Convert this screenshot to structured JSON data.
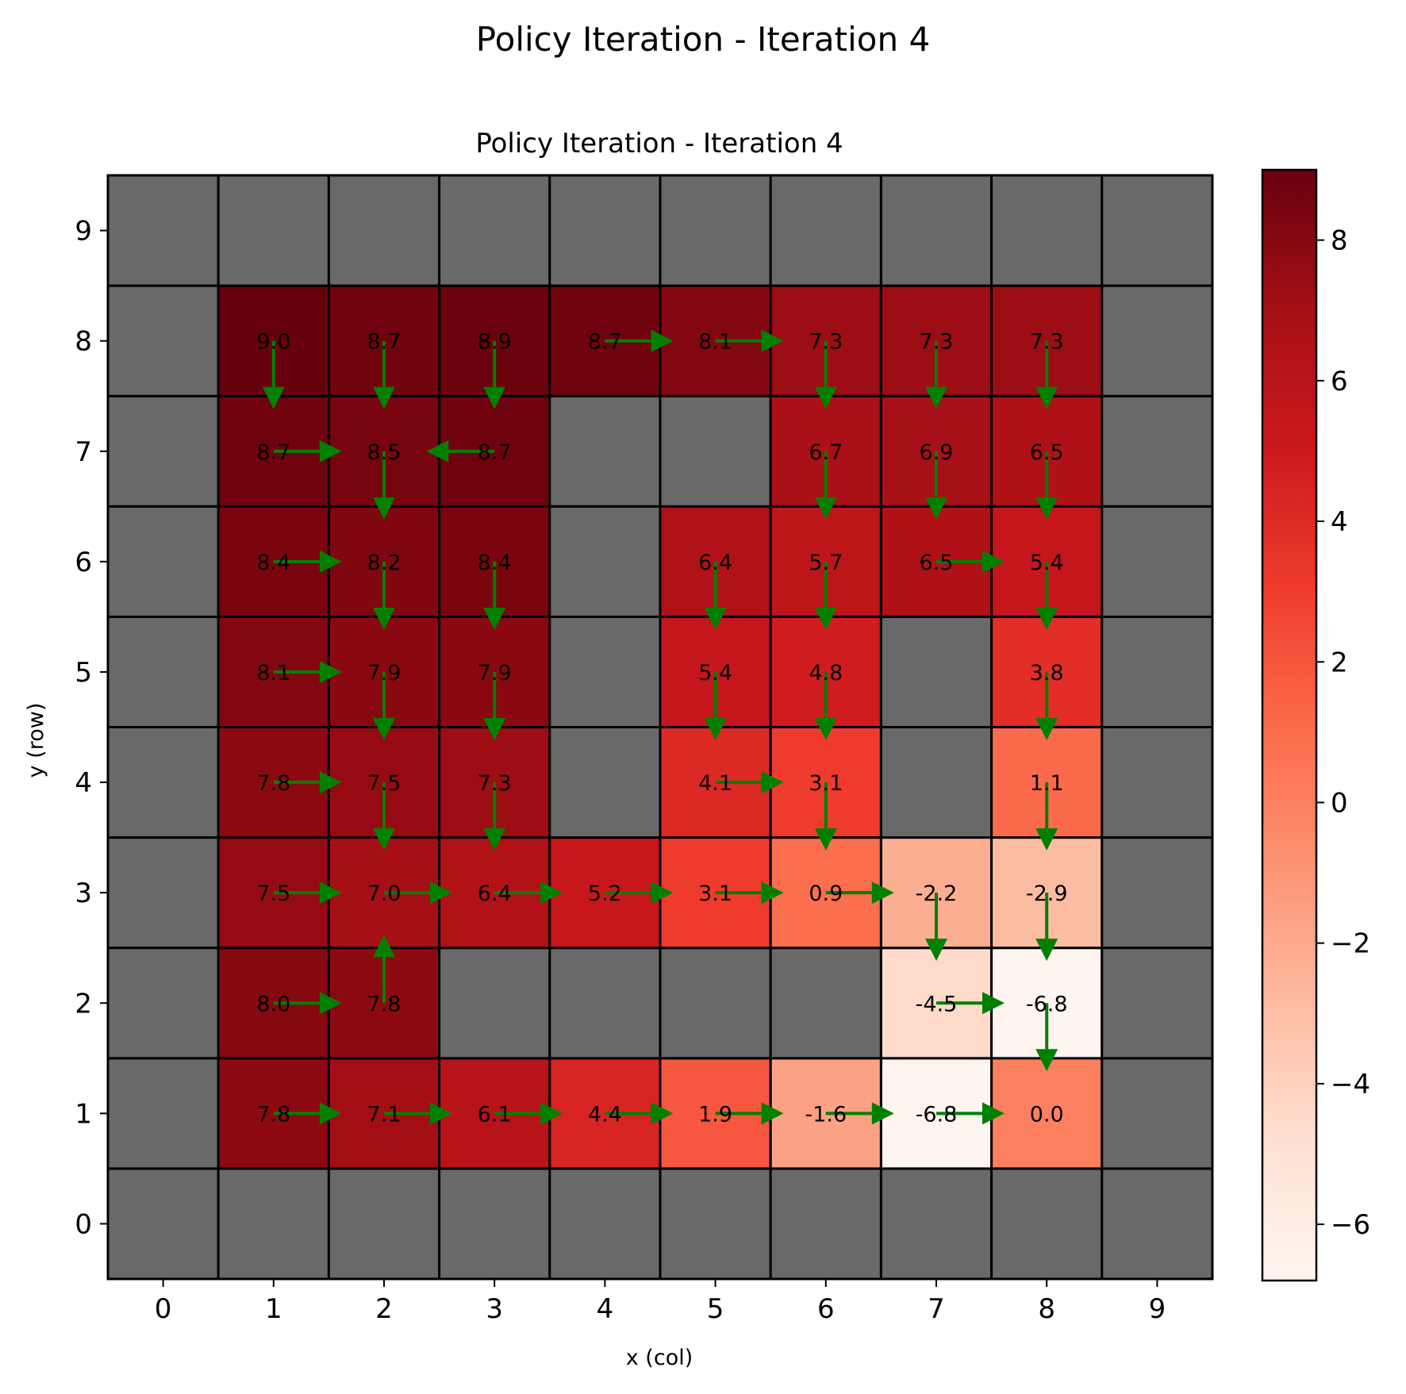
{
  "figure": {
    "suptitle": "Policy Iteration - Iteration 4"
  },
  "chart_data": {
    "type": "heatmap",
    "title": "Policy Iteration - Iteration 4",
    "xlabel": "x (col)",
    "ylabel": "y (row)",
    "x_ticks": [
      "0",
      "1",
      "2",
      "3",
      "4",
      "5",
      "6",
      "7",
      "8",
      "9"
    ],
    "y_ticks": [
      "0",
      "1",
      "2",
      "3",
      "4",
      "5",
      "6",
      "7",
      "8",
      "9"
    ],
    "xlim": [
      -0.5,
      9.5
    ],
    "ylim": [
      -0.5,
      9.5
    ],
    "colormap": "Reds",
    "color_range": [
      -6.8,
      9.0
    ],
    "colorbar_ticks": [
      "8",
      "6",
      "4",
      "2",
      "0",
      "−2",
      "−4",
      "−6"
    ],
    "colorbar_tick_values": [
      8,
      6,
      4,
      2,
      0,
      -2,
      -4,
      -6
    ],
    "wall_color": "#696969",
    "arrow_color": "#008000",
    "grid": true,
    "cells": [
      {
        "x": 1,
        "y": 8,
        "v": 9.0,
        "label": "9.0",
        "a": "down"
      },
      {
        "x": 2,
        "y": 8,
        "v": 8.7,
        "label": "8.7",
        "a": "down"
      },
      {
        "x": 3,
        "y": 8,
        "v": 8.9,
        "label": "8.9",
        "a": "down"
      },
      {
        "x": 4,
        "y": 8,
        "v": 8.7,
        "label": "8.7",
        "a": "right"
      },
      {
        "x": 5,
        "y": 8,
        "v": 8.1,
        "label": "8.1",
        "a": "right"
      },
      {
        "x": 6,
        "y": 8,
        "v": 7.3,
        "label": "7.3",
        "a": "down"
      },
      {
        "x": 7,
        "y": 8,
        "v": 7.3,
        "label": "7.3",
        "a": "down"
      },
      {
        "x": 8,
        "y": 8,
        "v": 7.3,
        "label": "7.3",
        "a": "down"
      },
      {
        "x": 1,
        "y": 7,
        "v": 8.7,
        "label": "8.7",
        "a": "right"
      },
      {
        "x": 2,
        "y": 7,
        "v": 8.5,
        "label": "8.5",
        "a": "down"
      },
      {
        "x": 3,
        "y": 7,
        "v": 8.7,
        "label": "8.7",
        "a": "left"
      },
      {
        "x": 6,
        "y": 7,
        "v": 6.7,
        "label": "6.7",
        "a": "down"
      },
      {
        "x": 7,
        "y": 7,
        "v": 6.9,
        "label": "6.9",
        "a": "down"
      },
      {
        "x": 8,
        "y": 7,
        "v": 6.5,
        "label": "6.5",
        "a": "down"
      },
      {
        "x": 1,
        "y": 6,
        "v": 8.4,
        "label": "8.4",
        "a": "right"
      },
      {
        "x": 2,
        "y": 6,
        "v": 8.2,
        "label": "8.2",
        "a": "down"
      },
      {
        "x": 3,
        "y": 6,
        "v": 8.4,
        "label": "8.4",
        "a": "down"
      },
      {
        "x": 5,
        "y": 6,
        "v": 6.4,
        "label": "6.4",
        "a": "down"
      },
      {
        "x": 6,
        "y": 6,
        "v": 5.7,
        "label": "5.7",
        "a": "down"
      },
      {
        "x": 7,
        "y": 6,
        "v": 6.5,
        "label": "6.5",
        "a": "right"
      },
      {
        "x": 8,
        "y": 6,
        "v": 5.4,
        "label": "5.4",
        "a": "down"
      },
      {
        "x": 1,
        "y": 5,
        "v": 8.1,
        "label": "8.1",
        "a": "right"
      },
      {
        "x": 2,
        "y": 5,
        "v": 7.9,
        "label": "7.9",
        "a": "down"
      },
      {
        "x": 3,
        "y": 5,
        "v": 7.9,
        "label": "7.9",
        "a": "down"
      },
      {
        "x": 5,
        "y": 5,
        "v": 5.4,
        "label": "5.4",
        "a": "down"
      },
      {
        "x": 6,
        "y": 5,
        "v": 4.8,
        "label": "4.8",
        "a": "down"
      },
      {
        "x": 8,
        "y": 5,
        "v": 3.8,
        "label": "3.8",
        "a": "down"
      },
      {
        "x": 1,
        "y": 4,
        "v": 7.8,
        "label": "7.8",
        "a": "right"
      },
      {
        "x": 2,
        "y": 4,
        "v": 7.5,
        "label": "7.5",
        "a": "down"
      },
      {
        "x": 3,
        "y": 4,
        "v": 7.3,
        "label": "7.3",
        "a": "down"
      },
      {
        "x": 5,
        "y": 4,
        "v": 4.1,
        "label": "4.1",
        "a": "right"
      },
      {
        "x": 6,
        "y": 4,
        "v": 3.1,
        "label": "3.1",
        "a": "down"
      },
      {
        "x": 8,
        "y": 4,
        "v": 1.1,
        "label": "1.1",
        "a": "down"
      },
      {
        "x": 1,
        "y": 3,
        "v": 7.5,
        "label": "7.5",
        "a": "right"
      },
      {
        "x": 2,
        "y": 3,
        "v": 7.0,
        "label": "7.0",
        "a": "right"
      },
      {
        "x": 3,
        "y": 3,
        "v": 6.4,
        "label": "6.4",
        "a": "right"
      },
      {
        "x": 4,
        "y": 3,
        "v": 5.2,
        "label": "5.2",
        "a": "right"
      },
      {
        "x": 5,
        "y": 3,
        "v": 3.1,
        "label": "3.1",
        "a": "right"
      },
      {
        "x": 6,
        "y": 3,
        "v": 0.9,
        "label": "0.9",
        "a": "right"
      },
      {
        "x": 7,
        "y": 3,
        "v": -2.2,
        "label": "-2.2",
        "a": "down"
      },
      {
        "x": 8,
        "y": 3,
        "v": -2.9,
        "label": "-2.9",
        "a": "down"
      },
      {
        "x": 1,
        "y": 2,
        "v": 8.0,
        "label": "8.0",
        "a": "right"
      },
      {
        "x": 2,
        "y": 2,
        "v": 7.8,
        "label": "7.8",
        "a": "up"
      },
      {
        "x": 7,
        "y": 2,
        "v": -4.5,
        "label": "-4.5",
        "a": "right"
      },
      {
        "x": 8,
        "y": 2,
        "v": -6.8,
        "label": "-6.8",
        "a": "down"
      },
      {
        "x": 1,
        "y": 1,
        "v": 7.8,
        "label": "7.8",
        "a": "right"
      },
      {
        "x": 2,
        "y": 1,
        "v": 7.1,
        "label": "7.1",
        "a": "right"
      },
      {
        "x": 3,
        "y": 1,
        "v": 6.1,
        "label": "6.1",
        "a": "right"
      },
      {
        "x": 4,
        "y": 1,
        "v": 4.4,
        "label": "4.4",
        "a": "right"
      },
      {
        "x": 5,
        "y": 1,
        "v": 1.9,
        "label": "1.9",
        "a": "right"
      },
      {
        "x": 6,
        "y": 1,
        "v": -1.6,
        "label": "-1.6",
        "a": "right"
      },
      {
        "x": 7,
        "y": 1,
        "v": -6.8,
        "label": "-6.8",
        "a": "right"
      },
      {
        "x": 8,
        "y": 1,
        "v": 0.0,
        "label": "0.0",
        "a": ""
      }
    ]
  }
}
